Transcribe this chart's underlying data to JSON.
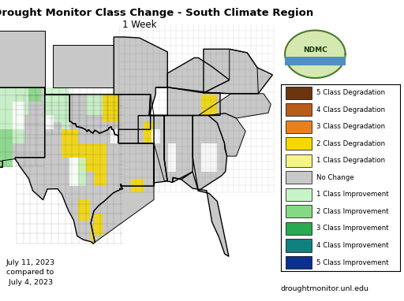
{
  "title": "U.S. Drought Monitor Class Change - South Climate Region",
  "subtitle": "1 Week",
  "date_text": "July 11, 2023\ncompared to\n July 4, 2023",
  "website_text": "droughtmonitor.unl.edu",
  "legend_entries": [
    {
      "label": "5 Class Degradation",
      "color": "#6b3510"
    },
    {
      "label": "4 Class Degradation",
      "color": "#b85c1a"
    },
    {
      "label": "3 Class Degradation",
      "color": "#e88020"
    },
    {
      "label": "2 Class Degradation",
      "color": "#f5d800"
    },
    {
      "label": "1 Class Degradation",
      "color": "#f5f585"
    },
    {
      "label": "No Change",
      "color": "#c8c8c8"
    },
    {
      "label": "1 Class Improvement",
      "color": "#c8f5c8"
    },
    {
      "label": "2 Class Improvement",
      "color": "#85d985"
    },
    {
      "label": "3 Class Improvement",
      "color": "#2aaa50"
    },
    {
      "label": "4 Class Improvement",
      "color": "#108080"
    },
    {
      "label": "5 Class Improvement",
      "color": "#0a3090"
    }
  ],
  "background_color": "#ffffff",
  "map_facecolor": "#c8c8c8",
  "out_of_region_color": "#ffffff",
  "figsize": [
    5.12,
    3.82
  ],
  "dpi": 100,
  "title_fontsize": 9.5,
  "subtitle_fontsize": 8.5,
  "legend_fontsize": 6.2,
  "date_fontsize": 6.8,
  "website_fontsize": 6.8,
  "map_extent": [
    -108.5,
    -74.5,
    23.5,
    41.5
  ]
}
